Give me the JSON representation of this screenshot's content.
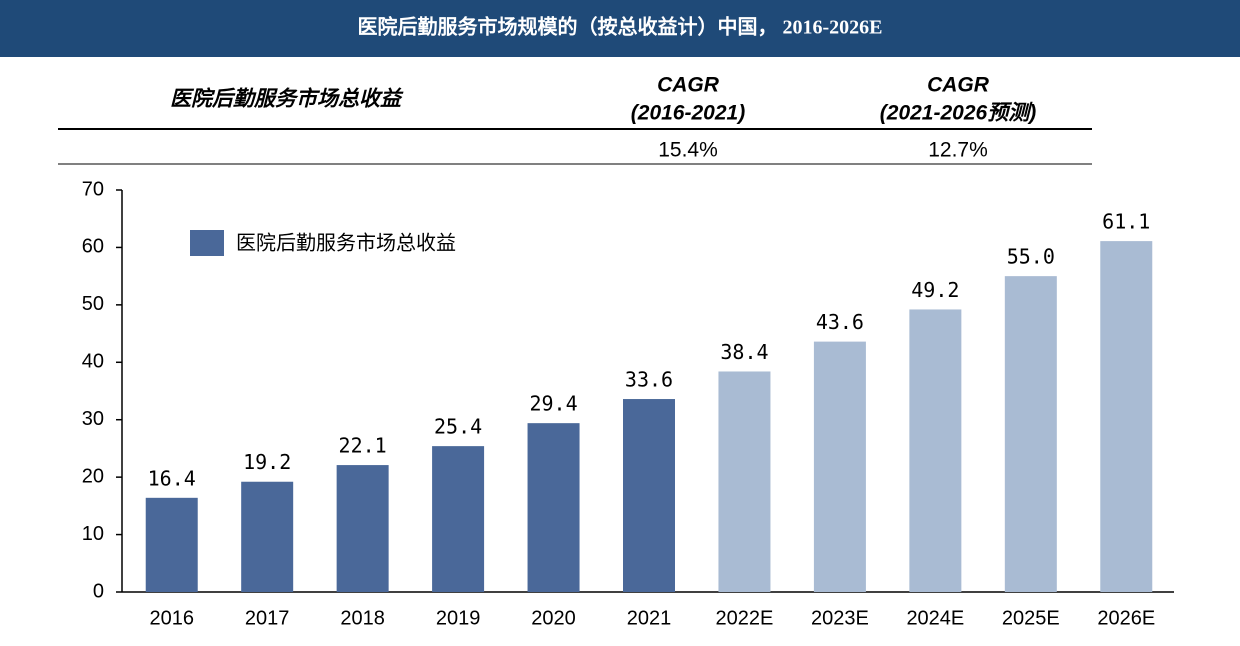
{
  "chart_data": {
    "type": "bar",
    "title": "医院后勤服务市场规模的（按总收益计）中国， 2016-2026E",
    "categories": [
      "2016",
      "2017",
      "2018",
      "2019",
      "2020",
      "2021",
      "2022E",
      "2023E",
      "2024E",
      "2025E",
      "2026E"
    ],
    "series": [
      {
        "name": "医院后勤服务市场总收益",
        "color": "#4a6899",
        "values": [
          16.4,
          19.2,
          22.1,
          25.4,
          29.4,
          33.6,
          38.4,
          43.6,
          49.2,
          55.0,
          61.1
        ],
        "value_labels": [
          "16.4",
          "19.2",
          "22.1",
          "25.4",
          "29.4",
          "33.6",
          "38.4",
          "43.6",
          "49.2",
          "55.0",
          "61.1"
        ],
        "bar_colors": [
          "#4a6899",
          "#4a6899",
          "#4a6899",
          "#4a6899",
          "#4a6899",
          "#4a6899",
          "#a9bbd3",
          "#a9bbd3",
          "#a9bbd3",
          "#a9bbd3",
          "#a9bbd3"
        ]
      }
    ],
    "ylim": [
      0,
      70
    ],
    "yticks": [
      0,
      10,
      20,
      30,
      40,
      50,
      60,
      70
    ],
    "grid": false,
    "legend": "upper left"
  },
  "cagr_table": {
    "row_label": "医院后勤服务市场总收益",
    "columns": [
      {
        "title": "CAGR",
        "period": "(2016-2021)"
      },
      {
        "title": "CAGR",
        "period": "(2021-2026预测)"
      }
    ],
    "values": [
      "15.4%",
      "12.7%"
    ]
  }
}
